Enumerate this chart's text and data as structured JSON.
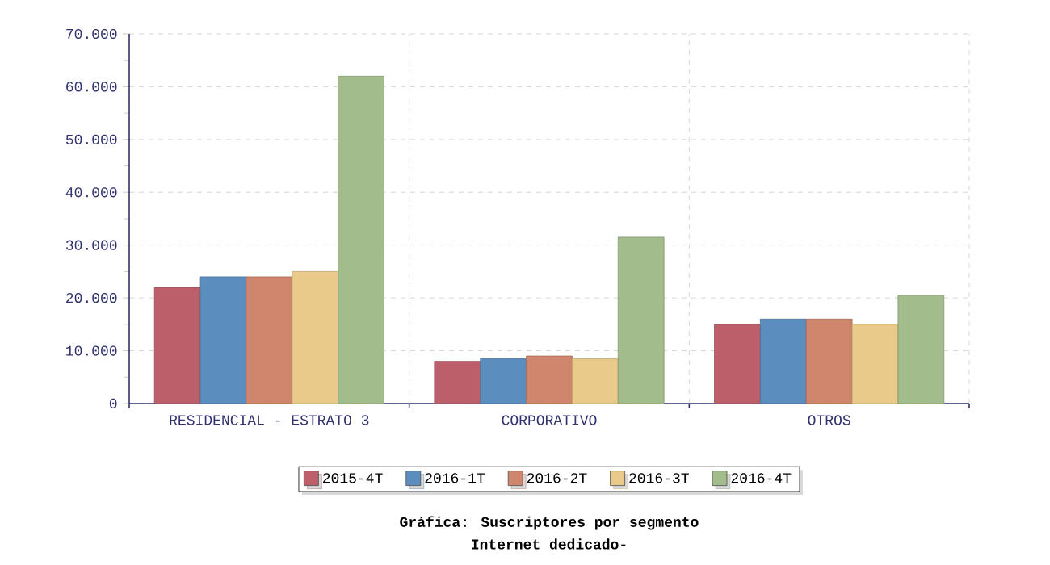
{
  "chart_data": {
    "type": "bar",
    "title": "Gráfica: Suscriptores por segmento",
    "subtitle": "Internet dedicado-",
    "categories": [
      "RESIDENCIAL - ESTRATO 3",
      "CORPORATIVO",
      "OTROS"
    ],
    "series": [
      {
        "name": "2015-4T",
        "color": "#bc5f6a",
        "values": [
          22000,
          8000,
          15000
        ]
      },
      {
        "name": "2016-1T",
        "color": "#5b8ebf",
        "values": [
          24000,
          8500,
          16000
        ]
      },
      {
        "name": "2016-2T",
        "color": "#cf866c",
        "values": [
          24000,
          9000,
          16000
        ]
      },
      {
        "name": "2016-3T",
        "color": "#eaca8a",
        "values": [
          25000,
          8500,
          15000
        ]
      },
      {
        "name": "2016-4T",
        "color": "#a3bc8c",
        "values": [
          62000,
          31500,
          20500
        ]
      }
    ],
    "ylim": [
      0,
      70000
    ],
    "yticks": [
      0,
      {
        "value": 10000,
        "label": "10.000"
      },
      {
        "value": 20000,
        "label": "20.000"
      },
      {
        "value": 30000,
        "label": "30.000"
      },
      {
        "value": 40000,
        "label": "40.000"
      },
      {
        "value": 50000,
        "label": "50.000"
      },
      {
        "value": 60000,
        "label": "60.000"
      },
      {
        "value": 70000,
        "label": "70.000"
      }
    ],
    "grid": true,
    "legend": "bottom"
  }
}
